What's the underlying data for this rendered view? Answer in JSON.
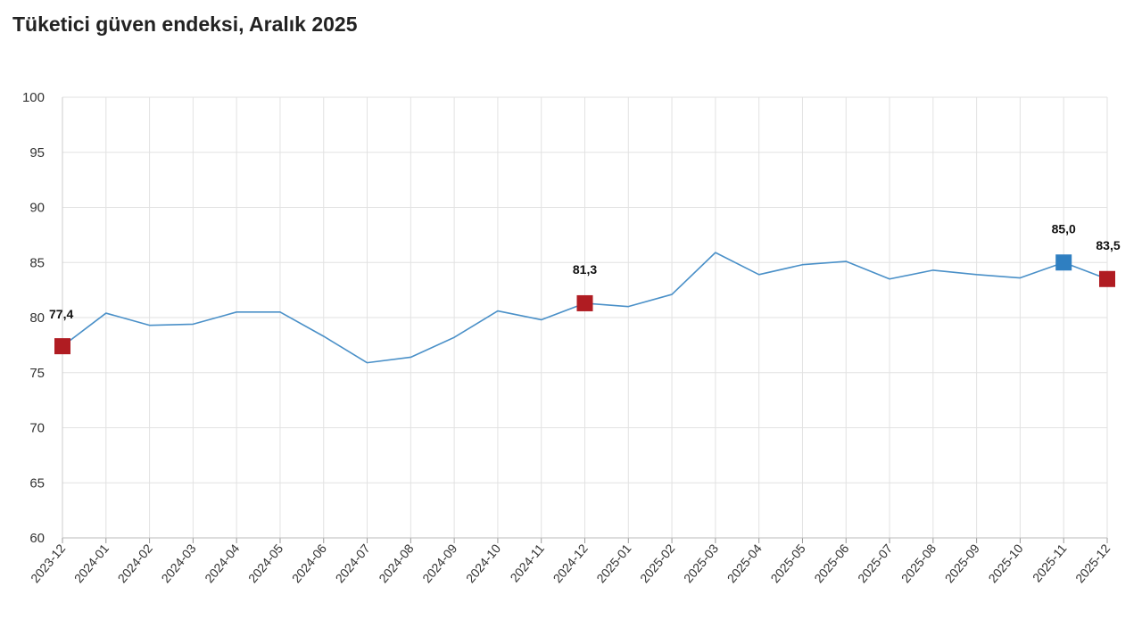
{
  "chart_data": {
    "type": "line",
    "title": "Tüketici güven endeksi, Aralık 2025",
    "xlabel": "",
    "ylabel": "",
    "ylim": [
      60,
      100
    ],
    "yticks": [
      60,
      65,
      70,
      75,
      80,
      85,
      90,
      95,
      100
    ],
    "grid": true,
    "categories": [
      "2023-12",
      "2024-01",
      "2024-02",
      "2024-03",
      "2024-04",
      "2024-05",
      "2024-06",
      "2024-07",
      "2024-08",
      "2024-09",
      "2024-10",
      "2024-11",
      "2024-12",
      "2025-01",
      "2025-02",
      "2025-03",
      "2025-04",
      "2025-05",
      "2025-06",
      "2025-07",
      "2025-08",
      "2025-09",
      "2025-10",
      "2025-11",
      "2025-12"
    ],
    "series": [
      {
        "values": [
          77.4,
          80.4,
          79.3,
          79.4,
          80.5,
          80.5,
          78.3,
          75.9,
          76.4,
          78.2,
          80.6,
          79.8,
          81.3,
          81.0,
          82.1,
          85.9,
          83.9,
          84.8,
          85.1,
          83.5,
          84.3,
          83.9,
          83.6,
          85.0,
          83.5
        ],
        "color": "#4a90c8"
      }
    ],
    "highlighted_points": [
      {
        "category": "2023-12",
        "value": 77.4,
        "label": "77,4",
        "color": "#b01c22"
      },
      {
        "category": "2024-12",
        "value": 81.3,
        "label": "81,3",
        "color": "#b01c22"
      },
      {
        "category": "2025-11",
        "value": 85.0,
        "label": "85,0",
        "color": "#2f7fc1"
      },
      {
        "category": "2025-12",
        "value": 83.5,
        "label": "83,5",
        "color": "#b01c22"
      }
    ]
  }
}
